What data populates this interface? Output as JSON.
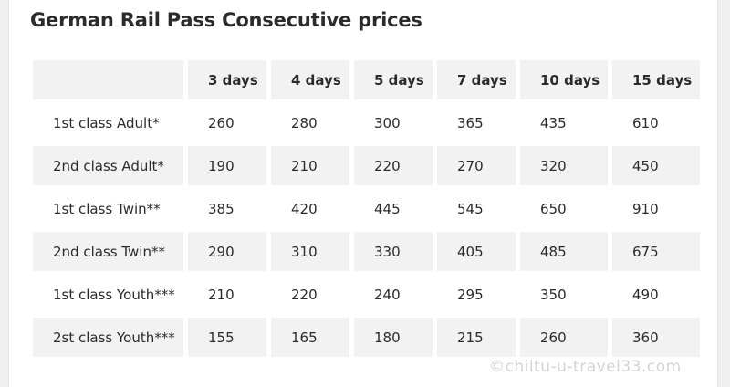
{
  "title": "German Rail Pass Consecutive prices",
  "table": {
    "headers": [
      "",
      "3 days",
      "4 days",
      "5 days",
      "7 days",
      "10 days",
      "15 days"
    ],
    "rows": [
      {
        "label": "1st class Adult*",
        "values": [
          "260",
          "280",
          "300",
          "365",
          "435",
          "610"
        ]
      },
      {
        "label": "2nd class Adult*",
        "values": [
          "190",
          "210",
          "220",
          "270",
          "320",
          "450"
        ]
      },
      {
        "label": "1st class Twin**",
        "values": [
          "385",
          "420",
          "445",
          "545",
          "650",
          "910"
        ]
      },
      {
        "label": "2nd class Twin**",
        "values": [
          "290",
          "310",
          "330",
          "405",
          "485",
          "675"
        ]
      },
      {
        "label": "1st class Youth***",
        "values": [
          "210",
          "220",
          "240",
          "295",
          "350",
          "490"
        ]
      },
      {
        "label": "2st class Youth***",
        "values": [
          "155",
          "165",
          "180",
          "215",
          "260",
          "360"
        ]
      }
    ]
  },
  "watermark": "©chiltu-u-travel33.com"
}
